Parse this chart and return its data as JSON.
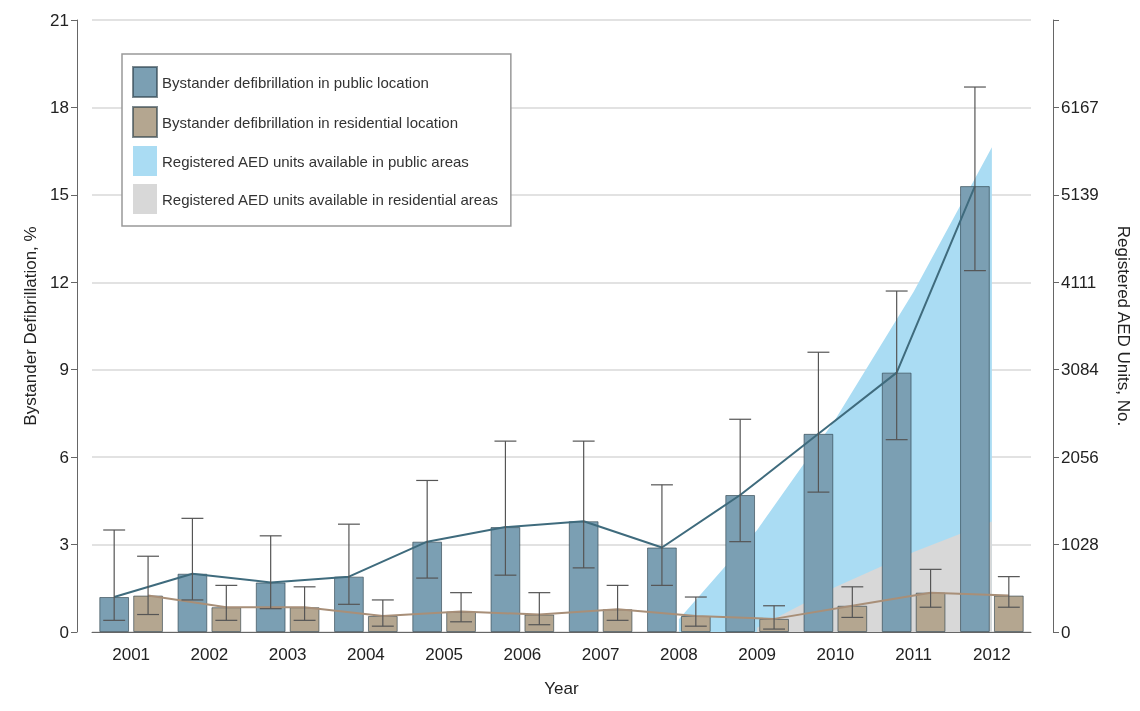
{
  "chart_data": {
    "type": "bar",
    "xlabel": "Year",
    "ylabel": "Bystander Defibrillation, %",
    "y2label": "Registered AED Units, No.",
    "categories": [
      "2001",
      "2002",
      "2003",
      "2004",
      "2005",
      "2006",
      "2007",
      "2008",
      "2009",
      "2010",
      "2011",
      "2012"
    ],
    "series": [
      {
        "name": "Bystander defibrillation in public location",
        "color": "#7b9fb3",
        "values": [
          1.2,
          2.0,
          1.7,
          1.9,
          3.1,
          3.6,
          3.8,
          2.9,
          4.7,
          6.8,
          8.9,
          15.3
        ],
        "errors": [
          [
            0.4,
            3.5
          ],
          [
            1.1,
            3.9
          ],
          [
            0.8,
            3.3
          ],
          [
            0.95,
            3.7
          ],
          [
            1.85,
            5.2
          ],
          [
            1.95,
            6.55
          ],
          [
            2.2,
            6.55
          ],
          [
            1.6,
            5.05
          ],
          [
            3.1,
            7.3
          ],
          [
            4.8,
            9.6
          ],
          [
            6.6,
            11.7
          ],
          [
            12.4,
            18.7
          ]
        ]
      },
      {
        "name": "Bystander defibrillation in residential location",
        "color": "#b4a690",
        "values": [
          1.25,
          0.85,
          0.85,
          0.55,
          0.7,
          0.6,
          0.78,
          0.55,
          0.45,
          0.9,
          1.35,
          1.25
        ],
        "errors": [
          [
            0.6,
            2.6
          ],
          [
            0.4,
            1.6
          ],
          [
            0.4,
            1.55
          ],
          [
            0.2,
            1.1
          ],
          [
            0.35,
            1.35
          ],
          [
            0.25,
            1.35
          ],
          [
            0.4,
            1.6
          ],
          [
            0.2,
            1.2
          ],
          [
            0.1,
            0.9
          ],
          [
            0.5,
            1.55
          ],
          [
            0.85,
            2.15
          ],
          [
            0.85,
            1.9
          ]
        ]
      },
      {
        "name": "Registered AED units available in public areas",
        "type": "area",
        "axis": "y2",
        "color": "#aadcf3",
        "values": [
          null,
          null,
          null,
          null,
          null,
          null,
          null,
          150,
          1200,
          2500,
          4000,
          5700
        ]
      },
      {
        "name": "Registered AED units available in residential areas",
        "type": "area",
        "axis": "y2",
        "color": "#d8d8d8",
        "values": [
          null,
          null,
          null,
          null,
          null,
          null,
          null,
          null,
          50,
          530,
          940,
          1300
        ]
      },
      {
        "type": "line",
        "color": "#3f6b7d",
        "values": [
          1.2,
          2.0,
          1.7,
          1.9,
          3.1,
          3.6,
          3.8,
          2.9,
          4.7,
          6.8,
          8.9,
          15.3
        ]
      },
      {
        "type": "line",
        "color": "#a88f78",
        "values": [
          1.25,
          0.85,
          0.85,
          0.55,
          0.7,
          0.6,
          0.78,
          0.55,
          0.45,
          0.9,
          1.35,
          1.25
        ]
      }
    ],
    "ylim": [
      0,
      21
    ],
    "yticks": [
      0,
      3,
      6,
      9,
      12,
      15,
      18,
      21
    ],
    "y2lim": [
      0,
      7195
    ],
    "y2ticks": [
      0,
      1028,
      2056,
      3084,
      4111,
      5139,
      6167,
      {
        "value": 7195,
        "label": null
      }
    ],
    "grid": "y",
    "legend": "top left",
    "marker": "none",
    "line_style": "solid"
  }
}
